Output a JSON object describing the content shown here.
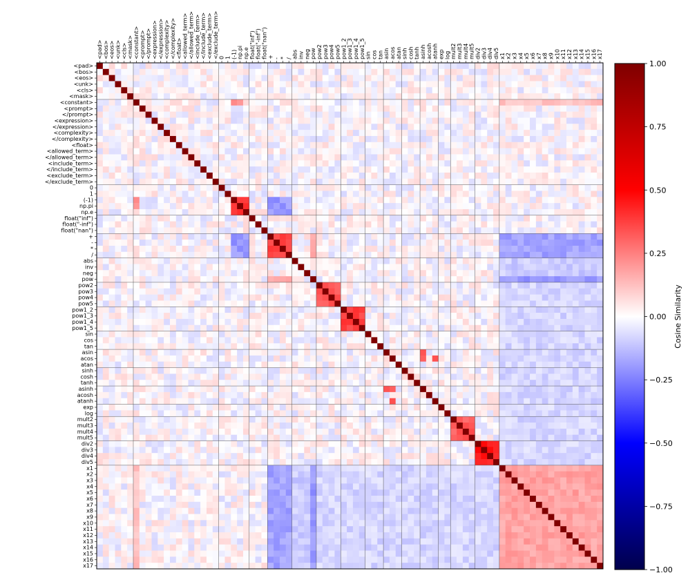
{
  "chart_data": {
    "type": "heatmap",
    "labels": [
      "<pad>",
      "<bos>",
      "<eos>",
      "<unk>",
      "<cls>",
      "<mask>",
      "<constant>",
      "<prompt>",
      "</prompt>",
      "<expression>",
      "</expression>",
      "<complexity>",
      "</complexity>",
      "<float>",
      "<allowed_term>",
      "</allowed_term>",
      "<include_term>",
      "</include_term>",
      "<exclude_term>",
      "</exclude_term>",
      "0",
      "1",
      "(-1)",
      "np.pi",
      "np.e",
      "float(\"inf\")",
      "float(\"-inf\")",
      "float(\"nan\")",
      "+",
      "-",
      "*",
      "/",
      "abs",
      "inv",
      "neg",
      "pow",
      "pow2",
      "pow3",
      "pow4",
      "pow5",
      "pow1_2",
      "pow1_3",
      "pow1_4",
      "pow1_5",
      "sin",
      "cos",
      "tan",
      "asin",
      "acos",
      "atan",
      "sinh",
      "cosh",
      "tanh",
      "asinh",
      "acosh",
      "atanh",
      "exp",
      "log",
      "mult2",
      "mult3",
      "mult4",
      "mult5",
      "div2",
      "div3",
      "div4",
      "div5",
      "x1",
      "x2",
      "x3",
      "x4",
      "x5",
      "x6",
      "x7",
      "x8",
      "x9",
      "x10",
      "x11",
      "x12",
      "x13",
      "x14",
      "x15",
      "x16",
      "x17"
    ],
    "group_starts": [
      0,
      6,
      20,
      25,
      28,
      32,
      36,
      40,
      44,
      47,
      50,
      53,
      56,
      58,
      62,
      66
    ],
    "diagonal_value": 1.0,
    "block_values": [
      {
        "rows": [
          28,
          31
        ],
        "cols": [
          28,
          31
        ],
        "value": 0.38
      },
      {
        "rows": [
          36,
          39
        ],
        "cols": [
          36,
          39
        ],
        "value": 0.32
      },
      {
        "rows": [
          40,
          43
        ],
        "cols": [
          40,
          43
        ],
        "value": 0.38
      },
      {
        "rows": [
          58,
          61
        ],
        "cols": [
          58,
          61
        ],
        "value": 0.32
      },
      {
        "rows": [
          62,
          65
        ],
        "cols": [
          62,
          65
        ],
        "value": 0.45
      },
      {
        "rows": [
          66,
          82
        ],
        "cols": [
          66,
          82
        ],
        "value": 0.18
      },
      {
        "rows": [
          22,
          24
        ],
        "cols": [
          22,
          24
        ],
        "value": 0.4
      },
      {
        "rows": [
          66,
          82
        ],
        "cols": [
          28,
          31
        ],
        "value": -0.18
      },
      {
        "rows": [
          28,
          31
        ],
        "cols": [
          66,
          82
        ],
        "value": -0.18
      },
      {
        "rows": [
          22,
          24
        ],
        "cols": [
          28,
          31
        ],
        "value": -0.2
      },
      {
        "rows": [
          28,
          31
        ],
        "cols": [
          22,
          24
        ],
        "value": -0.2
      },
      {
        "rows": [
          66,
          82
        ],
        "cols": [
          32,
          35
        ],
        "value": -0.1
      },
      {
        "rows": [
          32,
          35
        ],
        "cols": [
          66,
          82
        ],
        "value": -0.1
      },
      {
        "rows": [
          66,
          82
        ],
        "cols": [
          36,
          65
        ],
        "value": -0.08
      },
      {
        "rows": [
          36,
          65
        ],
        "cols": [
          66,
          82
        ],
        "value": -0.08
      },
      {
        "rows": [
          6,
          6
        ],
        "cols": [
          66,
          82
        ],
        "value": 0.12
      },
      {
        "rows": [
          66,
          82
        ],
        "cols": [
          6,
          6
        ],
        "value": 0.12
      },
      {
        "rows": [
          35,
          35
        ],
        "cols": [
          66,
          82
        ],
        "value": -0.2
      },
      {
        "rows": [
          66,
          82
        ],
        "cols": [
          35,
          35
        ],
        "value": -0.2
      },
      {
        "rows": [
          35,
          35
        ],
        "cols": [
          28,
          31
        ],
        "value": 0.15
      },
      {
        "rows": [
          28,
          31
        ],
        "cols": [
          35,
          35
        ],
        "value": 0.15
      },
      {
        "rows": [
          6,
          6
        ],
        "cols": [
          22,
          23
        ],
        "value": 0.2
      },
      {
        "rows": [
          22,
          23
        ],
        "cols": [
          6,
          6
        ],
        "value": 0.2
      },
      {
        "rows": [
          53,
          53
        ],
        "cols": [
          47,
          48
        ],
        "value": 0.3
      },
      {
        "rows": [
          47,
          48
        ],
        "cols": [
          53,
          53
        ],
        "value": 0.3
      },
      {
        "rows": [
          48,
          48
        ],
        "cols": [
          55,
          55
        ],
        "value": 0.35
      },
      {
        "rows": [
          55,
          55
        ],
        "cols": [
          48,
          48
        ],
        "value": 0.35
      }
    ],
    "colorbar": {
      "label": "Cosine Similarity",
      "min": -1.0,
      "max": 1.0,
      "ticks": [
        "1.00",
        "0.75",
        "0.50",
        "0.25",
        "0.00",
        "−0.25",
        "−0.50",
        "−0.75",
        "−1.00"
      ],
      "tick_values": [
        1.0,
        0.75,
        0.5,
        0.25,
        0.0,
        -0.25,
        -0.5,
        -0.75,
        -1.0
      ],
      "colormap": "seismic"
    },
    "grid": false,
    "legend": "right"
  },
  "colors": {
    "diagonal": "#800000",
    "negative_end": "#00004c",
    "positive_end": "#7f0000"
  }
}
